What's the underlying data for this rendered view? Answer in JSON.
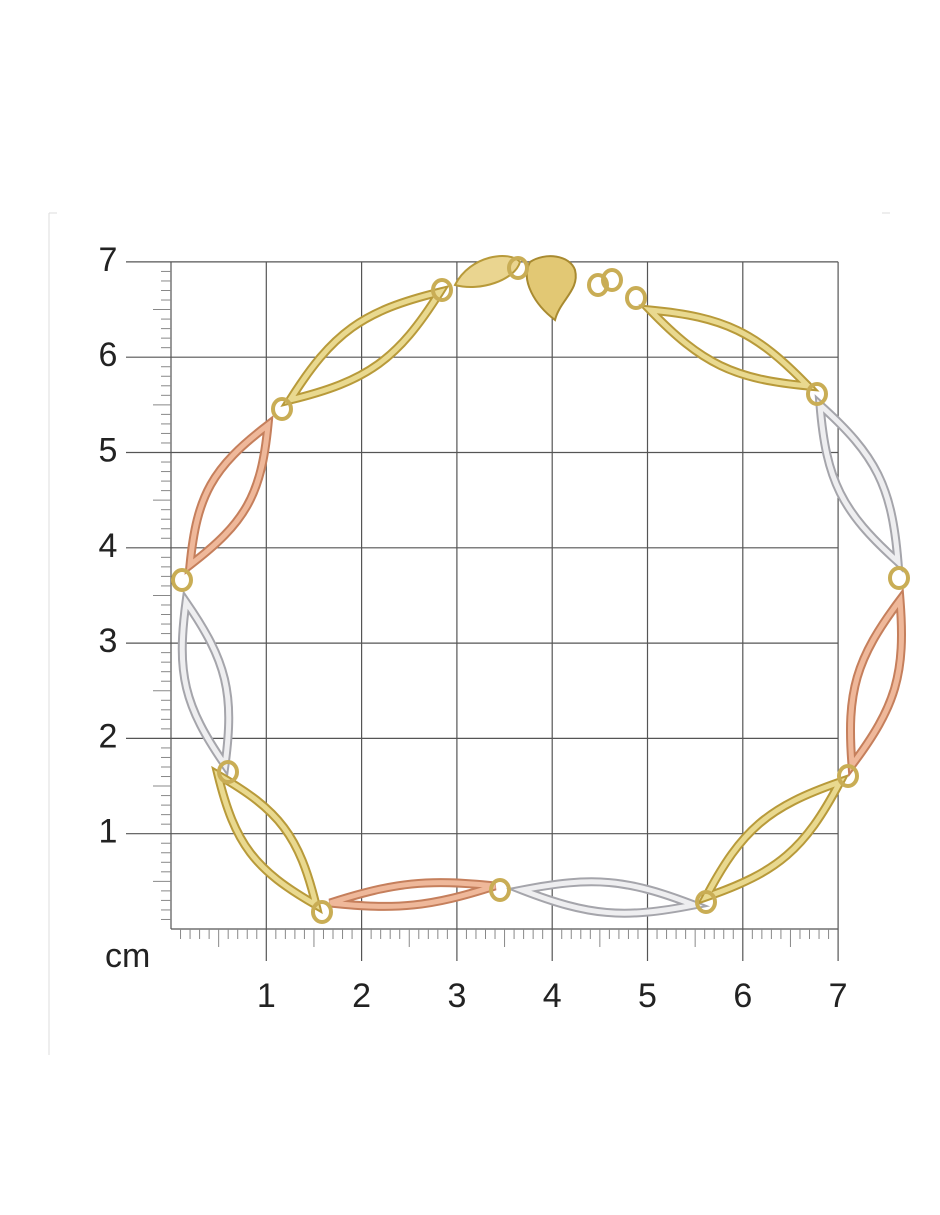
{
  "ruler": {
    "unit": "cm",
    "x_ticks": [
      1,
      2,
      3,
      4,
      5,
      6,
      7
    ],
    "y_ticks": [
      1,
      2,
      3,
      4,
      5,
      6,
      7
    ]
  }
}
